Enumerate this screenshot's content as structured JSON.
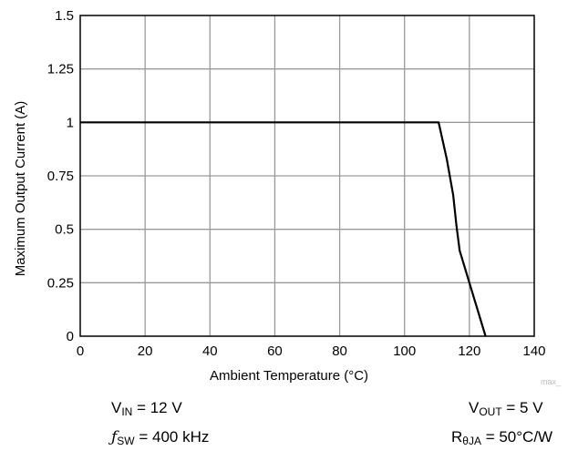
{
  "chart_data": {
    "type": "line",
    "title": "",
    "xlabel": "Ambient Temperature (°C)",
    "ylabel": "Maximum Output Current (A)",
    "xlim": [
      0,
      140
    ],
    "ylim": [
      0,
      1.5
    ],
    "x_ticks": [
      0,
      20,
      40,
      60,
      80,
      100,
      120,
      140
    ],
    "x_tick_labels": [
      "0",
      "20",
      "40",
      "60",
      "80",
      "100",
      "120",
      "140"
    ],
    "y_ticks": [
      0,
      0.25,
      0.5,
      0.75,
      1,
      1.25,
      1.5
    ],
    "y_tick_labels": [
      "0",
      "0.25",
      "0.5",
      "0.75",
      "1",
      "1.25",
      "1.5"
    ],
    "grid": true,
    "legend": "none",
    "series": [
      {
        "x": [
          0,
          110.5,
          113,
          115,
          116,
          117,
          119,
          121,
          123,
          125
        ],
        "y": [
          1.0,
          1.0,
          0.83,
          0.66,
          0.52,
          0.4,
          0.3,
          0.2,
          0.1,
          0.0
        ],
        "color": "#000000"
      }
    ]
  },
  "conditions": {
    "vin": {
      "symbol": "V",
      "sub": "IN",
      "rest": " = 12 V"
    },
    "fsw": {
      "symbol": "ƒ",
      "sub": "SW",
      "rest": " = 400 kHz"
    },
    "vout": {
      "symbol": "V",
      "sub": "OUT",
      "rest": " = 5 V"
    },
    "rth": {
      "symbol": "R",
      "sub": "θJA",
      "rest": " = 50°C/W"
    }
  },
  "watermark": "max_"
}
